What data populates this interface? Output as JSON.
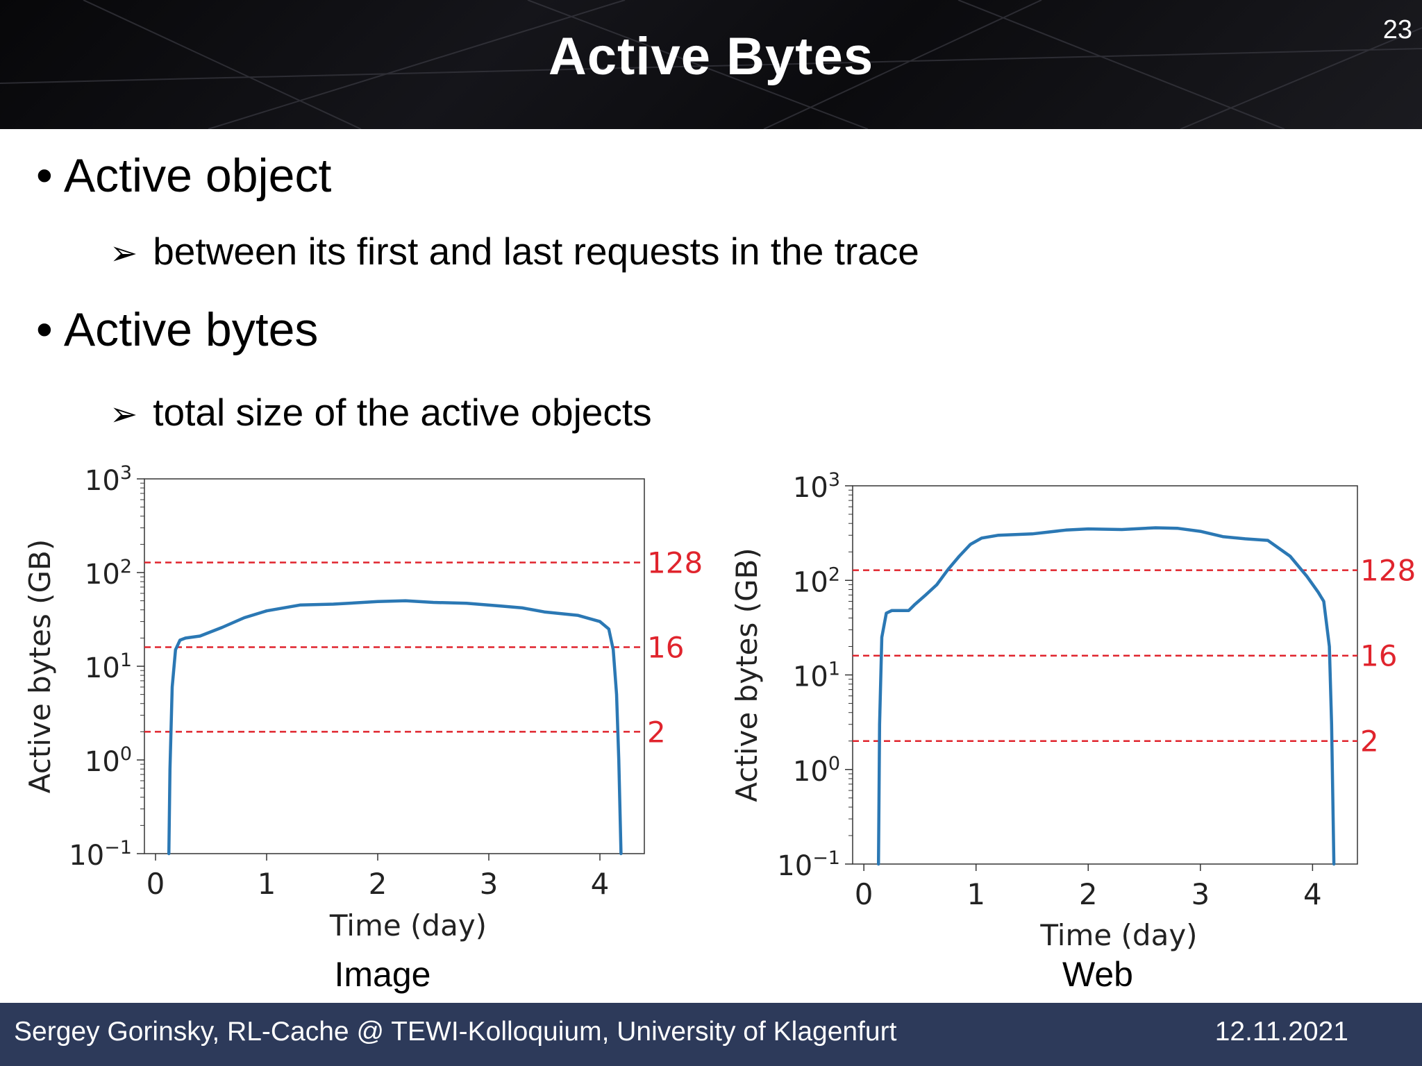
{
  "slide": {
    "title": "Active Bytes",
    "number": "23",
    "bullets": [
      {
        "level": 1,
        "text": "Active object"
      },
      {
        "level": 2,
        "text": "between its first and last requests in the trace"
      },
      {
        "level": 1,
        "text": "Active bytes"
      },
      {
        "level": 2,
        "text": "total size of the active objects"
      }
    ],
    "bullet_symbol": "•",
    "sub_bullet_symbol": "➢"
  },
  "footer": {
    "left": "Sergey Gorinsky, RL-Cache @ TEWI-Kolloquium, University of Klagenfurt",
    "right": "12.11.2021"
  },
  "colors": {
    "header_bg": "#0b0b0e",
    "footer_bg": "#2d3a5a",
    "line": "#2b78b4",
    "ref": "#e0242d"
  },
  "chart_data": [
    {
      "type": "line",
      "caption": "Image",
      "xlabel": "Time (day)",
      "ylabel": "Active bytes (GB)",
      "xlim": [
        -0.1,
        4.4
      ],
      "ylim": [
        0.1,
        1000
      ],
      "yscale": "log",
      "xticks": [
        0,
        1,
        2,
        3,
        4
      ],
      "yticks": [
        0.1,
        1,
        10,
        100,
        1000
      ],
      "ytick_labels": [
        {
          "base": "10",
          "exp": "−1"
        },
        {
          "base": "10",
          "exp": "0"
        },
        {
          "base": "10",
          "exp": "1"
        },
        {
          "base": "10",
          "exp": "2"
        },
        {
          "base": "10",
          "exp": "3"
        }
      ],
      "reference_lines": [
        {
          "y": 128,
          "label": "128"
        },
        {
          "y": 16,
          "label": "16"
        },
        {
          "y": 2,
          "label": "2"
        }
      ],
      "grid": false,
      "series": [
        {
          "x": [
            0.12,
            0.13,
            0.15,
            0.18,
            0.22,
            0.27,
            0.4,
            0.6,
            0.8,
            1.0,
            1.3,
            1.6,
            2.0,
            2.25,
            2.5,
            2.8,
            3.1,
            3.3,
            3.5,
            3.8,
            4.0,
            4.08,
            4.12,
            4.15,
            4.17,
            4.19
          ],
          "y": [
            0.1,
            0.8,
            6,
            15,
            19,
            20,
            21,
            26,
            33,
            39,
            45,
            46,
            49,
            50,
            48,
            47,
            44,
            42,
            38,
            35,
            30,
            25,
            15,
            5,
            1,
            0.1
          ]
        }
      ]
    },
    {
      "type": "line",
      "caption": "Web",
      "xlabel": "Time (day)",
      "ylabel": "Active bytes (GB)",
      "xlim": [
        -0.1,
        4.4
      ],
      "ylim": [
        0.1,
        1000
      ],
      "yscale": "log",
      "xticks": [
        0,
        1,
        2,
        3,
        4
      ],
      "yticks": [
        0.1,
        1,
        10,
        100,
        1000
      ],
      "ytick_labels": [
        {
          "base": "10",
          "exp": "−1"
        },
        {
          "base": "10",
          "exp": "0"
        },
        {
          "base": "10",
          "exp": "1"
        },
        {
          "base": "10",
          "exp": "2"
        },
        {
          "base": "10",
          "exp": "3"
        }
      ],
      "reference_lines": [
        {
          "y": 128,
          "label": "128"
        },
        {
          "y": 16,
          "label": "16"
        },
        {
          "y": 2,
          "label": "2"
        }
      ],
      "grid": false,
      "series": [
        {
          "x": [
            0.13,
            0.14,
            0.16,
            0.2,
            0.25,
            0.4,
            0.45,
            0.55,
            0.65,
            0.75,
            0.85,
            0.95,
            1.05,
            1.2,
            1.5,
            1.8,
            2.0,
            2.3,
            2.6,
            2.8,
            3.0,
            3.2,
            3.4,
            3.6,
            3.8,
            3.95,
            4.05,
            4.1,
            4.15,
            4.17,
            4.19
          ],
          "y": [
            0.1,
            3,
            25,
            45,
            48,
            48,
            55,
            70,
            90,
            130,
            180,
            240,
            280,
            300,
            310,
            340,
            350,
            345,
            360,
            355,
            330,
            290,
            275,
            265,
            180,
            110,
            75,
            60,
            20,
            3,
            0.1
          ]
        }
      ]
    }
  ]
}
